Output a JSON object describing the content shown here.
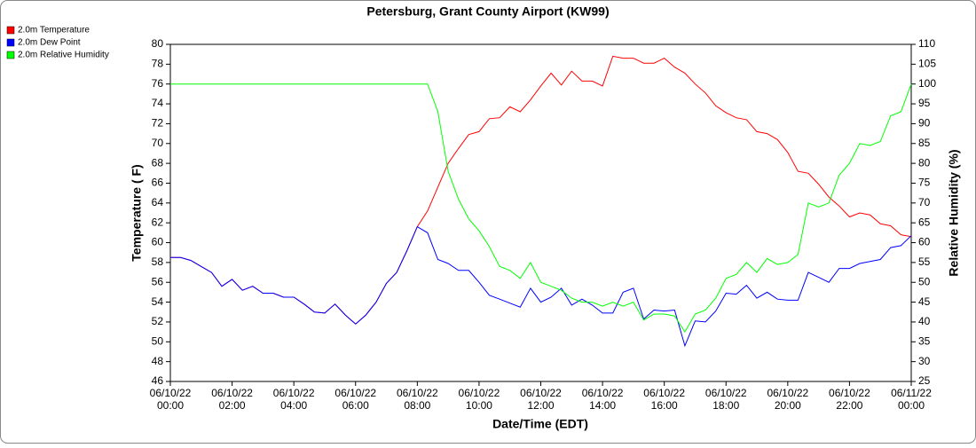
{
  "chart_data": {
    "type": "line",
    "title": "Petersburg, Grant County Airport (KW99)",
    "xlabel": "Date/Time (EDT)",
    "ylabel": "Temperature ( F)",
    "y2label": "Relative Humidity (%)",
    "legend": "top-left",
    "grid": false,
    "x": [
      "06/10/22 00:00",
      "06/10/22 00:20",
      "06/10/22 00:40",
      "06/10/22 01:00",
      "06/10/22 01:20",
      "06/10/22 01:40",
      "06/10/22 02:00",
      "06/10/22 02:20",
      "06/10/22 02:40",
      "06/10/22 03:00",
      "06/10/22 03:20",
      "06/10/22 03:40",
      "06/10/22 04:00",
      "06/10/22 04:20",
      "06/10/22 04:40",
      "06/10/22 05:00",
      "06/10/22 05:20",
      "06/10/22 05:40",
      "06/10/22 06:00",
      "06/10/22 06:20",
      "06/10/22 06:40",
      "06/10/22 07:00",
      "06/10/22 07:20",
      "06/10/22 07:40",
      "06/10/22 08:00",
      "06/10/22 08:20",
      "06/10/22 08:40",
      "06/10/22 09:00",
      "06/10/22 09:20",
      "06/10/22 09:40",
      "06/10/22 10:00",
      "06/10/22 10:20",
      "06/10/22 10:40",
      "06/10/22 11:00",
      "06/10/22 11:20",
      "06/10/22 11:40",
      "06/10/22 12:00",
      "06/10/22 12:20",
      "06/10/22 12:40",
      "06/10/22 13:00",
      "06/10/22 13:20",
      "06/10/22 13:40",
      "06/10/22 14:00",
      "06/10/22 14:20",
      "06/10/22 14:40",
      "06/10/22 15:00",
      "06/10/22 15:20",
      "06/10/22 15:40",
      "06/10/22 16:00",
      "06/10/22 16:20",
      "06/10/22 16:40",
      "06/10/22 17:00",
      "06/10/22 17:20",
      "06/10/22 17:40",
      "06/10/22 18:00",
      "06/10/22 18:20",
      "06/10/22 18:40",
      "06/10/22 19:00",
      "06/10/22 19:20",
      "06/10/22 19:40",
      "06/10/22 20:00",
      "06/10/22 20:20",
      "06/10/22 20:40",
      "06/10/22 21:00",
      "06/10/22 21:20",
      "06/10/22 21:40",
      "06/10/22 22:00",
      "06/10/22 22:20",
      "06/10/22 22:40",
      "06/10/22 23:00",
      "06/10/22 23:20",
      "06/10/22 23:40",
      "06/11/22 00:00"
    ],
    "xticks": [
      {
        "value": "06/10/22 00:00",
        "label": [
          "06/10/22",
          "00:00"
        ]
      },
      {
        "value": "06/10/22 02:00",
        "label": [
          "06/10/22",
          "02:00"
        ]
      },
      {
        "value": "06/10/22 04:00",
        "label": [
          "06/10/22",
          "04:00"
        ]
      },
      {
        "value": "06/10/22 06:00",
        "label": [
          "06/10/22",
          "06:00"
        ]
      },
      {
        "value": "06/10/22 08:00",
        "label": [
          "06/10/22",
          "08:00"
        ]
      },
      {
        "value": "06/10/22 10:00",
        "label": [
          "06/10/22",
          "10:00"
        ]
      },
      {
        "value": "06/10/22 12:00",
        "label": [
          "06/10/22",
          "12:00"
        ]
      },
      {
        "value": "06/10/22 14:00",
        "label": [
          "06/10/22",
          "14:00"
        ]
      },
      {
        "value": "06/10/22 16:00",
        "label": [
          "06/10/22",
          "16:00"
        ]
      },
      {
        "value": "06/10/22 18:00",
        "label": [
          "06/10/22",
          "18:00"
        ]
      },
      {
        "value": "06/10/22 20:00",
        "label": [
          "06/10/22",
          "20:00"
        ]
      },
      {
        "value": "06/10/22 22:00",
        "label": [
          "06/10/22",
          "22:00"
        ]
      },
      {
        "value": "06/11/22 00:00",
        "label": [
          "06/11/22",
          "00:00"
        ]
      }
    ],
    "ylim": [
      46,
      80
    ],
    "yticks": [
      46,
      48,
      50,
      52,
      54,
      56,
      58,
      60,
      62,
      64,
      66,
      68,
      70,
      72,
      74,
      76,
      78,
      80
    ],
    "y2lim": [
      25,
      110
    ],
    "y2ticks": [
      25,
      30,
      35,
      40,
      45,
      50,
      55,
      60,
      65,
      70,
      75,
      80,
      85,
      90,
      95,
      100,
      105,
      110
    ],
    "series": [
      {
        "name": "2.0m Temperature",
        "color": "#ff0000",
        "values": [
          58.5,
          58.5,
          58.2,
          57.6,
          57.0,
          55.6,
          56.3,
          55.2,
          55.6,
          54.9,
          54.9,
          54.5,
          54.5,
          53.8,
          53.0,
          52.9,
          53.8,
          52.7,
          51.8,
          52.7,
          54.0,
          55.9,
          57.0,
          59.2,
          61.6,
          63.2,
          65.6,
          68.0,
          69.5,
          70.9,
          71.2,
          72.5,
          72.6,
          73.7,
          73.2,
          74.4,
          75.8,
          77.1,
          75.9,
          77.3,
          76.3,
          76.3,
          75.8,
          78.8,
          78.6,
          78.6,
          78.1,
          78.1,
          78.6,
          77.7,
          77.1,
          76.0,
          75.1,
          73.8,
          73.1,
          72.6,
          72.4,
          71.2,
          71.0,
          70.4,
          69.1,
          67.2,
          67.0,
          65.9,
          64.6,
          63.7,
          62.6,
          63.0,
          62.8,
          61.9,
          61.7,
          60.8,
          60.6
        ]
      },
      {
        "name": "2.0m Dew Point",
        "color": "#0000ff",
        "values": [
          58.5,
          58.5,
          58.2,
          57.6,
          57.0,
          55.6,
          56.3,
          55.2,
          55.6,
          54.9,
          54.9,
          54.5,
          54.5,
          53.8,
          53.0,
          52.9,
          53.8,
          52.7,
          51.8,
          52.7,
          54.0,
          55.9,
          57.0,
          59.2,
          61.6,
          61.0,
          58.3,
          57.9,
          57.2,
          57.2,
          56.0,
          54.7,
          54.3,
          53.9,
          53.5,
          55.4,
          54.0,
          54.5,
          55.4,
          53.7,
          54.3,
          53.7,
          52.9,
          52.9,
          55.0,
          55.4,
          52.3,
          53.2,
          53.1,
          53.2,
          49.6,
          52.1,
          52.0,
          53.1,
          54.9,
          54.8,
          55.7,
          54.4,
          55.0,
          54.3,
          54.2,
          54.2,
          57.0,
          56.5,
          56.0,
          57.4,
          57.4,
          57.9,
          58.1,
          58.3,
          59.5,
          59.7,
          60.7
        ]
      },
      {
        "name": "2.0m Relative Humidity",
        "color": "#00ff00",
        "axis": "y2",
        "values": [
          100,
          100,
          100,
          100,
          100,
          100,
          100,
          100,
          100,
          100,
          100,
          100,
          100,
          100,
          100,
          100,
          100,
          100,
          100,
          100,
          100,
          100,
          100,
          100,
          100,
          100,
          93,
          78,
          71,
          66,
          63,
          59,
          54,
          53,
          51,
          55,
          50,
          49,
          48,
          46,
          45,
          45,
          44,
          45,
          44,
          45,
          40.5,
          42,
          42,
          41.5,
          37.5,
          42,
          43,
          46,
          51,
          52,
          55,
          52.5,
          56,
          54.5,
          55,
          57,
          70,
          69,
          70,
          77,
          80,
          85,
          84.5,
          85.5,
          92,
          93,
          100
        ]
      }
    ]
  }
}
